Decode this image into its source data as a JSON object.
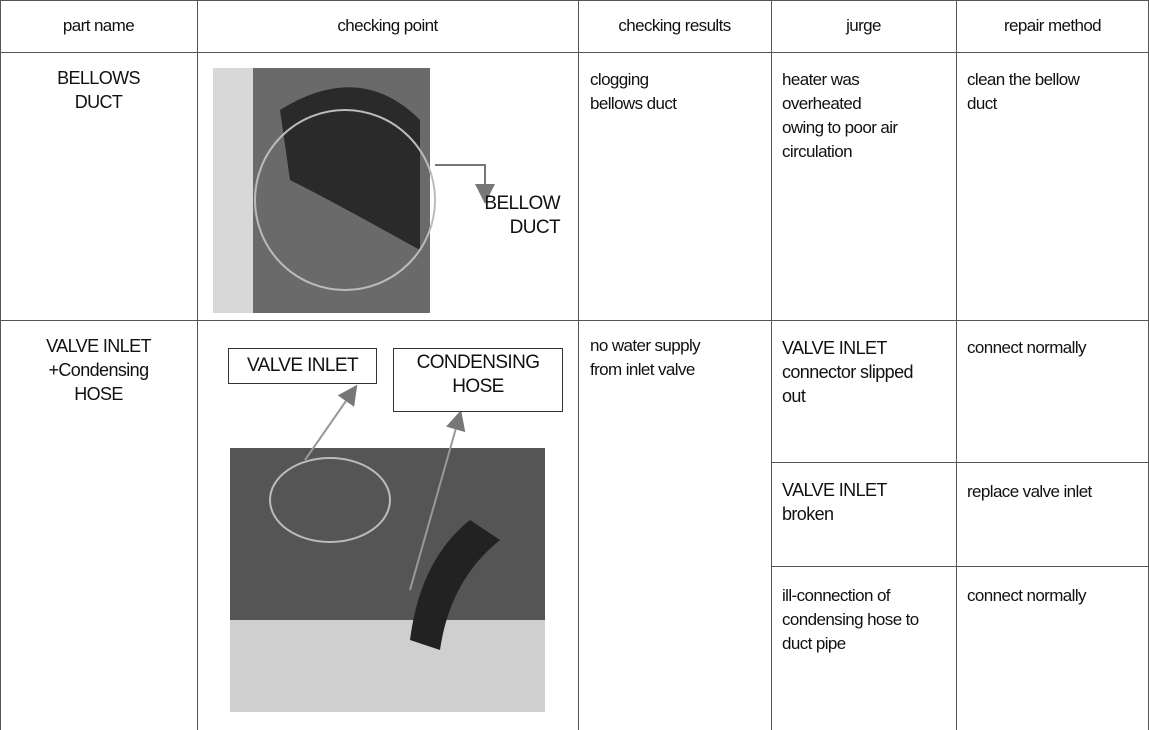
{
  "header": [
    "part name",
    "checking point",
    "checking results",
    "jurge",
    "repair method"
  ],
  "rows": [
    {
      "part_name": "BELLOWS\nDUCT",
      "image_labels": [
        "BELLOW\nDUCT"
      ],
      "checking_results": "clogging\nbellows duct",
      "checks": [
        {
          "judge": "heater was\noverheated\nowing to poor air\ncirculation",
          "repair": "clean the bellow\nduct"
        }
      ]
    },
    {
      "part_name": "VALVE INLET\n+Condensing\nHOSE",
      "image_labels": [
        "VALVE INLET",
        "CONDENSING\nHOSE"
      ],
      "checking_results": "no water supply\nfrom inlet valve",
      "checks": [
        {
          "judge": "VALVE INLET\nconnector slipped\nout",
          "repair": "connect normally"
        },
        {
          "judge": "VALVE INLET\nbroken",
          "repair": "replace valve inlet"
        },
        {
          "judge": "ill-connection of\ncondensing hose to\nduct pipe",
          "repair": "connect normally"
        }
      ]
    }
  ]
}
